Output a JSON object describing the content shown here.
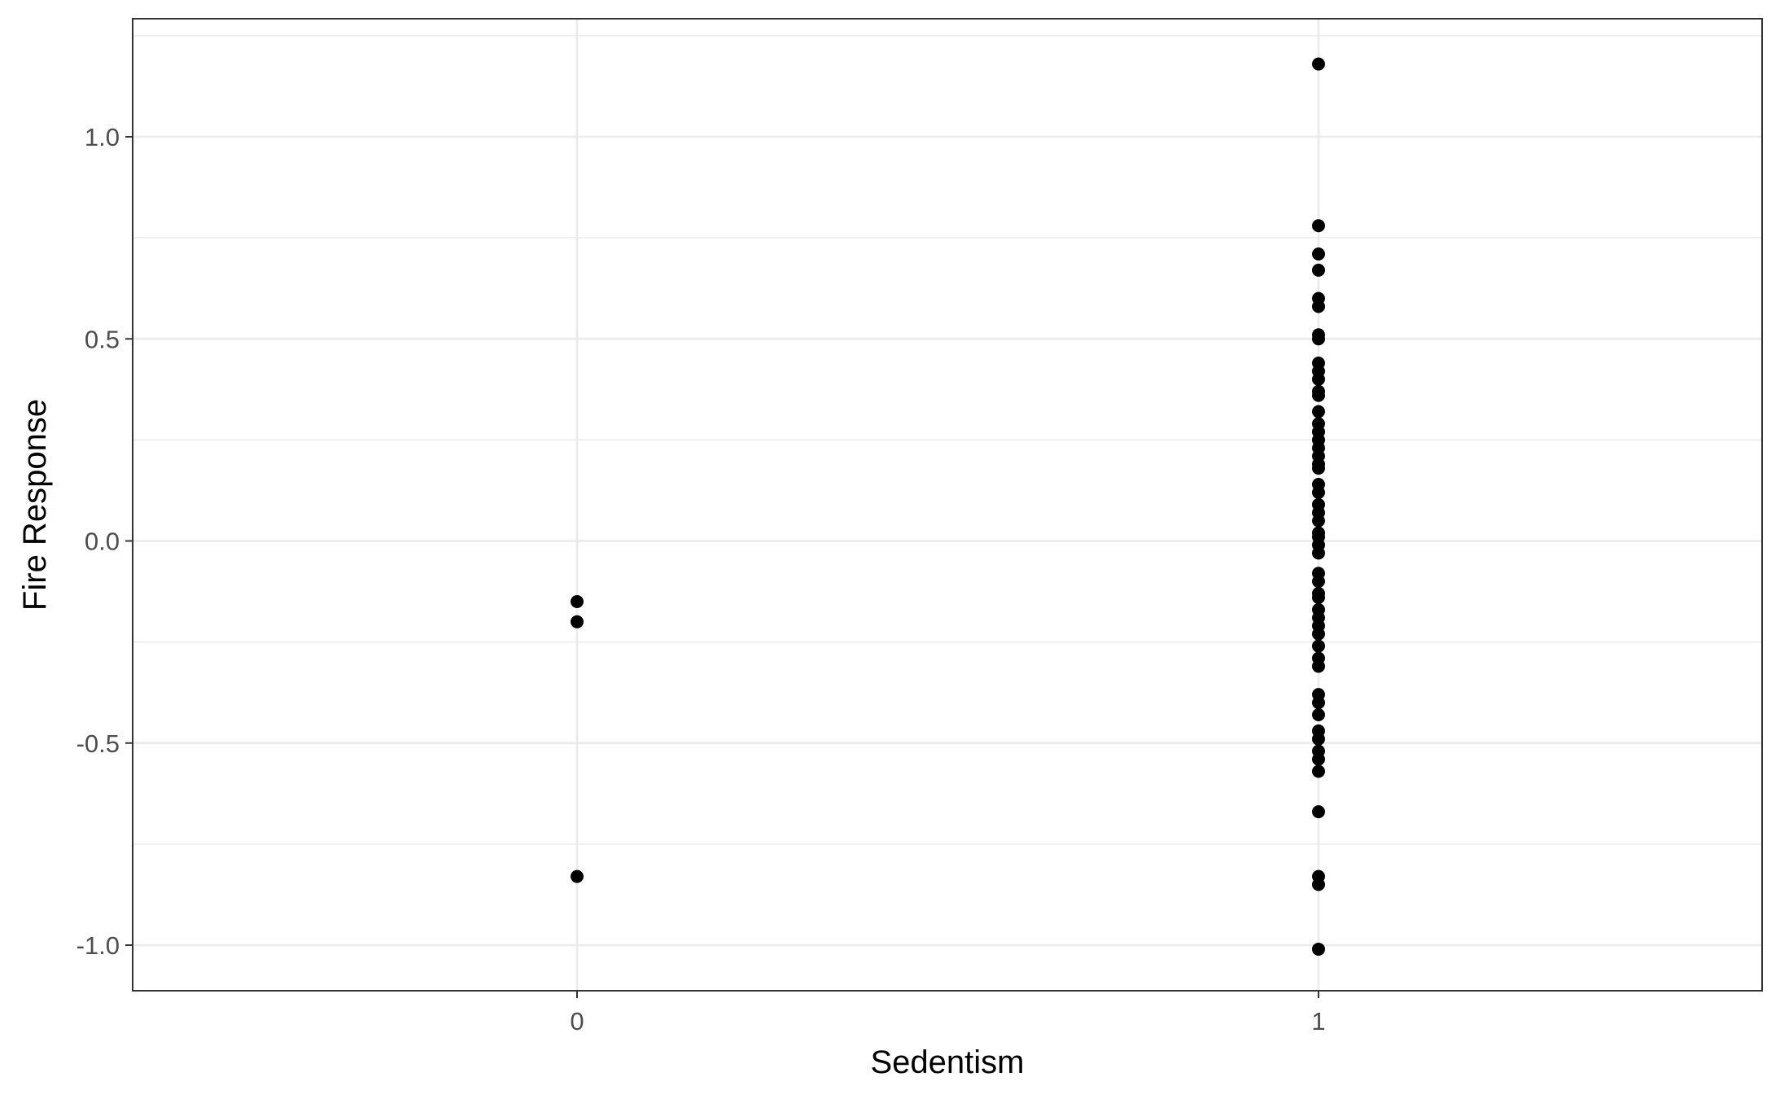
{
  "chart_data": {
    "type": "scatter",
    "xlabel": "Sedentism",
    "ylabel": "Fire Response",
    "categories": [
      "0",
      "1"
    ],
    "ylim": [
      -1.12,
      1.28
    ],
    "yticks": [
      -1.0,
      -0.5,
      0.0,
      0.5,
      1.0
    ],
    "ytick_labels": [
      "-1.0",
      "-0.5",
      "0.0",
      "0.5",
      "1.0"
    ],
    "grid": true,
    "legend": "none",
    "point_color": "#000000",
    "series": [
      {
        "points": [
          {
            "x": "0",
            "y": -0.15
          },
          {
            "x": "0",
            "y": -0.2
          },
          {
            "x": "0",
            "y": -0.83
          },
          {
            "x": "1",
            "y": 1.18
          },
          {
            "x": "1",
            "y": 0.78
          },
          {
            "x": "1",
            "y": 0.71
          },
          {
            "x": "1",
            "y": 0.67
          },
          {
            "x": "1",
            "y": 0.6
          },
          {
            "x": "1",
            "y": 0.58
          },
          {
            "x": "1",
            "y": 0.51
          },
          {
            "x": "1",
            "y": 0.5
          },
          {
            "x": "1",
            "y": 0.44
          },
          {
            "x": "1",
            "y": 0.42
          },
          {
            "x": "1",
            "y": 0.4
          },
          {
            "x": "1",
            "y": 0.37
          },
          {
            "x": "1",
            "y": 0.36
          },
          {
            "x": "1",
            "y": 0.32
          },
          {
            "x": "1",
            "y": 0.29
          },
          {
            "x": "1",
            "y": 0.27
          },
          {
            "x": "1",
            "y": 0.25
          },
          {
            "x": "1",
            "y": 0.23
          },
          {
            "x": "1",
            "y": 0.21
          },
          {
            "x": "1",
            "y": 0.19
          },
          {
            "x": "1",
            "y": 0.18
          },
          {
            "x": "1",
            "y": 0.14
          },
          {
            "x": "1",
            "y": 0.12
          },
          {
            "x": "1",
            "y": 0.09
          },
          {
            "x": "1",
            "y": 0.07
          },
          {
            "x": "1",
            "y": 0.05
          },
          {
            "x": "1",
            "y": 0.02
          },
          {
            "x": "1",
            "y": 0.01
          },
          {
            "x": "1",
            "y": -0.01
          },
          {
            "x": "1",
            "y": -0.03
          },
          {
            "x": "1",
            "y": -0.08
          },
          {
            "x": "1",
            "y": -0.1
          },
          {
            "x": "1",
            "y": -0.13
          },
          {
            "x": "1",
            "y": -0.14
          },
          {
            "x": "1",
            "y": -0.17
          },
          {
            "x": "1",
            "y": -0.19
          },
          {
            "x": "1",
            "y": -0.21
          },
          {
            "x": "1",
            "y": -0.23
          },
          {
            "x": "1",
            "y": -0.26
          },
          {
            "x": "1",
            "y": -0.29
          },
          {
            "x": "1",
            "y": -0.31
          },
          {
            "x": "1",
            "y": -0.38
          },
          {
            "x": "1",
            "y": -0.4
          },
          {
            "x": "1",
            "y": -0.43
          },
          {
            "x": "1",
            "y": -0.47
          },
          {
            "x": "1",
            "y": -0.49
          },
          {
            "x": "1",
            "y": -0.52
          },
          {
            "x": "1",
            "y": -0.54
          },
          {
            "x": "1",
            "y": -0.57
          },
          {
            "x": "1",
            "y": -0.67
          },
          {
            "x": "1",
            "y": -0.83
          },
          {
            "x": "1",
            "y": -0.85
          },
          {
            "x": "1",
            "y": -1.01
          }
        ]
      }
    ]
  }
}
